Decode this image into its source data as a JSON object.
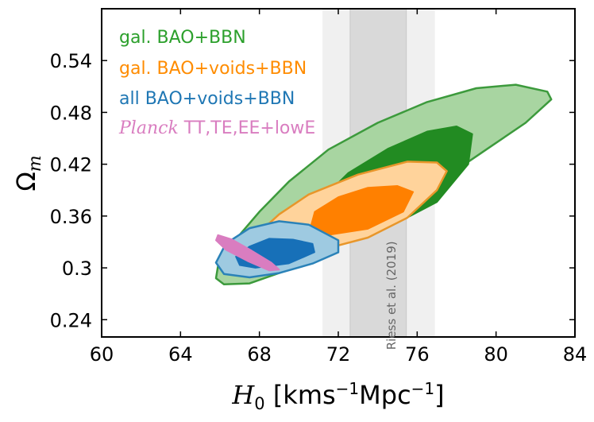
{
  "chart_data": {
    "type": "contour",
    "title": "",
    "xlabel": {
      "main": "H",
      "sub": "0",
      "unit_open": " [kms",
      "sup1": "−1",
      "unit_mid": "Mpc",
      "sup2": "−1",
      "unit_close": "]"
    },
    "ylabel": {
      "main": "Ω",
      "sub": "m"
    },
    "xlim": [
      60,
      84
    ],
    "ylim": [
      0.22,
      0.6
    ],
    "xticks": [
      60,
      64,
      68,
      72,
      76,
      80,
      84
    ],
    "yticks": [
      0.24,
      0.3,
      0.36,
      0.42,
      0.48,
      0.54
    ],
    "ytick_labels": [
      "0.24",
      "0.3",
      "0.36",
      "0.42",
      "0.48",
      "0.54"
    ],
    "legend_position": "top-left",
    "bands": [
      {
        "name": "Riess et al. (2019)",
        "label": "Riess et al. (2019)",
        "center": 74.03,
        "sigma1": [
          72.6,
          75.45
        ],
        "sigma2": [
          71.2,
          76.9
        ],
        "color_outer": "#f0f0f0",
        "color_inner": "#d9d9d9",
        "edge_color": "#c8c8c8",
        "label_color": "#666666",
        "label_x": 74.9,
        "label_y": 0.268
      }
    ],
    "series": [
      {
        "name": "gal. BAO+BBN",
        "legend_label": "gal.  BAO+BBN",
        "color": "#2ca02c",
        "outer_fill": "#a8d5a1",
        "inner_fill": "#228b22",
        "edge": "#3c9a3c",
        "outer": [
          [
            66.2,
            0.281
          ],
          [
            67.5,
            0.282
          ],
          [
            69.5,
            0.298
          ],
          [
            72,
            0.328
          ],
          [
            74.5,
            0.362
          ],
          [
            77,
            0.398
          ],
          [
            79.5,
            0.437
          ],
          [
            81.5,
            0.468
          ],
          [
            82.8,
            0.495
          ],
          [
            82.6,
            0.504
          ],
          [
            81,
            0.512
          ],
          [
            79,
            0.508
          ],
          [
            76.5,
            0.492
          ],
          [
            74,
            0.468
          ],
          [
            71.5,
            0.437
          ],
          [
            69.5,
            0.4
          ],
          [
            68,
            0.365
          ],
          [
            66.8,
            0.333
          ],
          [
            65.9,
            0.302
          ],
          [
            65.8,
            0.288
          ]
        ],
        "inner": [
          [
            73.5,
            0.345
          ],
          [
            75,
            0.352
          ],
          [
            77,
            0.376
          ],
          [
            78.6,
            0.42
          ],
          [
            78.8,
            0.455
          ],
          [
            78,
            0.464
          ],
          [
            76.5,
            0.458
          ],
          [
            74.5,
            0.438
          ],
          [
            72.5,
            0.41
          ],
          [
            71.3,
            0.383
          ],
          [
            71.8,
            0.36
          ]
        ]
      },
      {
        "name": "gal. BAO+voids+BBN",
        "legend_label": "gal.  BAO+voids+BBN",
        "color": "#ff8c00",
        "outer_fill": "#ffd39b",
        "inner_fill": "#ff8000",
        "edge": "#e8962a",
        "outer": [
          [
            69,
            0.317
          ],
          [
            71,
            0.32
          ],
          [
            73.5,
            0.335
          ],
          [
            75.5,
            0.358
          ],
          [
            77,
            0.39
          ],
          [
            77.5,
            0.412
          ],
          [
            77,
            0.422
          ],
          [
            75.5,
            0.423
          ],
          [
            73,
            0.408
          ],
          [
            70.5,
            0.385
          ],
          [
            69,
            0.362
          ],
          [
            67.7,
            0.335
          ],
          [
            68,
            0.32
          ]
        ],
        "inner": [
          [
            71.5,
            0.338
          ],
          [
            73.5,
            0.345
          ],
          [
            75.3,
            0.365
          ],
          [
            75.8,
            0.388
          ],
          [
            75,
            0.395
          ],
          [
            73.5,
            0.393
          ],
          [
            72,
            0.382
          ],
          [
            70.8,
            0.365
          ],
          [
            70.6,
            0.348
          ]
        ]
      },
      {
        "name": "all BAO+voids+BBN",
        "legend_label": "all  BAO+voids+BBN",
        "color": "#1f77b4",
        "outer_fill": "#9ecae1",
        "inner_fill": "#1770b8",
        "edge": "#2a82b8",
        "outer": [
          [
            66.2,
            0.293
          ],
          [
            67.5,
            0.289
          ],
          [
            69,
            0.294
          ],
          [
            70.7,
            0.305
          ],
          [
            72,
            0.318
          ],
          [
            72,
            0.332
          ],
          [
            70.5,
            0.35
          ],
          [
            69,
            0.354
          ],
          [
            67.5,
            0.346
          ],
          [
            66.3,
            0.328
          ],
          [
            65.8,
            0.306
          ]
        ],
        "inner": [
          [
            67.8,
            0.3
          ],
          [
            69.5,
            0.305
          ],
          [
            70.8,
            0.318
          ],
          [
            70.7,
            0.328
          ],
          [
            69.7,
            0.333
          ],
          [
            68.5,
            0.334
          ],
          [
            67.5,
            0.325
          ],
          [
            66.8,
            0.313
          ],
          [
            67,
            0.303
          ]
        ]
      },
      {
        "name": "Planck TT,TE,EE+lowE",
        "legend_label_italic": "Planck",
        "legend_label_rest": " TT,TE,EE+lowE",
        "color": "#d97dc0",
        "fill": "#d97dc0",
        "region": [
          [
            65.9,
            0.338
          ],
          [
            66.6,
            0.333
          ],
          [
            67.6,
            0.32
          ],
          [
            68.6,
            0.306
          ],
          [
            69.0,
            0.298
          ],
          [
            68.5,
            0.297
          ],
          [
            67.4,
            0.308
          ],
          [
            66.3,
            0.321
          ],
          [
            65.8,
            0.332
          ]
        ]
      }
    ]
  }
}
